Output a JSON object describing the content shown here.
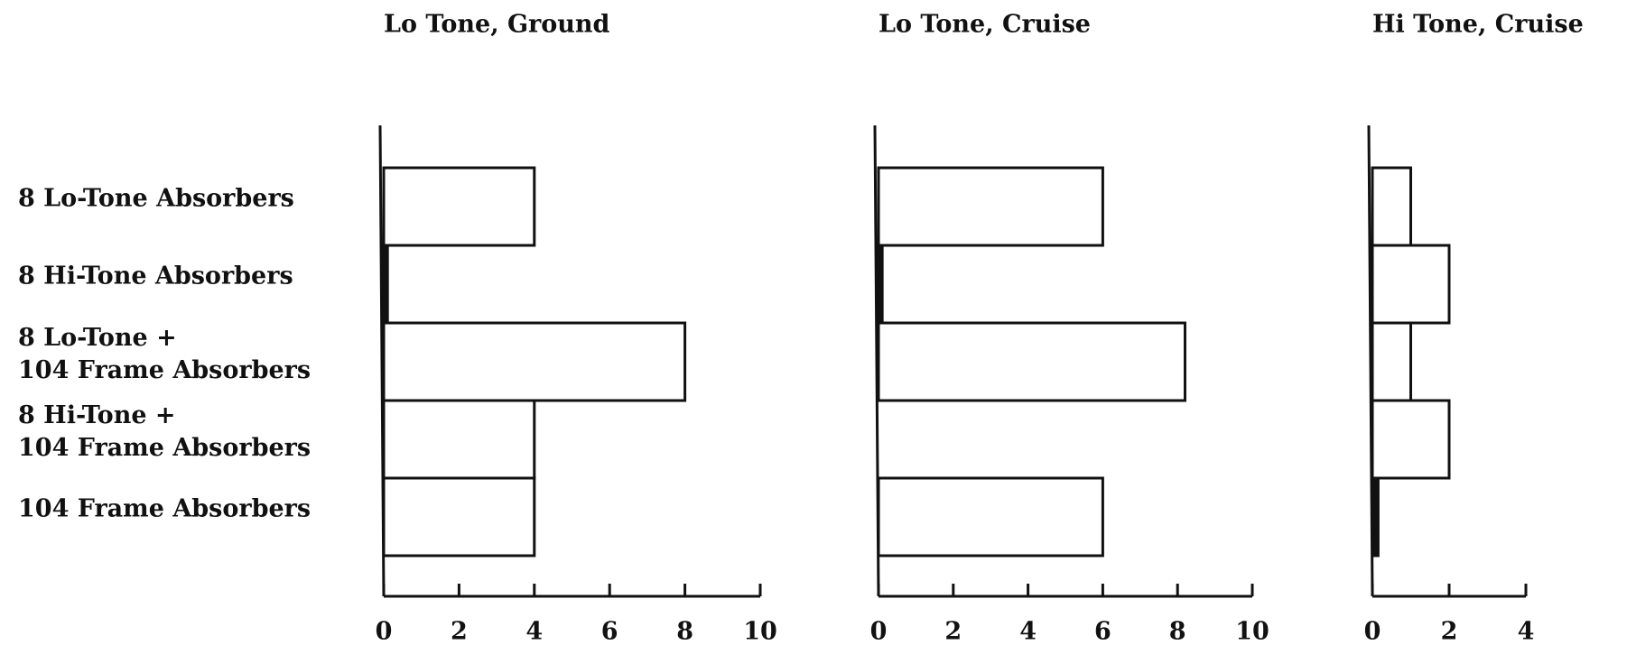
{
  "chart_data": [
    {
      "type": "barh",
      "title": "Lo Tone, Ground",
      "categories": [
        "8 Lo-Tone Absorbers",
        "8 Hi-Tone Absorbers",
        "8 Lo-Tone +\n104 Frame Absorbers",
        "8 Hi-Tone +\n104 Frame Absorbers",
        "104 Frame Absorbers"
      ],
      "values": [
        4,
        0.1,
        8,
        4,
        4
      ],
      "xlim": [
        0,
        10
      ],
      "xticks": [
        0,
        2,
        4,
        6,
        8,
        10
      ],
      "color": "#ffffff"
    },
    {
      "type": "barh",
      "title": "Lo Tone, Cruise",
      "values": [
        6,
        0.1,
        8.2,
        null,
        6
      ],
      "xlim": [
        0,
        10
      ],
      "xticks": [
        0,
        2,
        4,
        6,
        8,
        10
      ],
      "color": "#ffffff"
    },
    {
      "type": "barh",
      "title": "Hi Tone, Cruise",
      "values": [
        1,
        2,
        1,
        2,
        0.15
      ],
      "xlim": [
        0,
        4
      ],
      "xticks": [
        0,
        2,
        4
      ],
      "color": "#ffffff"
    }
  ]
}
